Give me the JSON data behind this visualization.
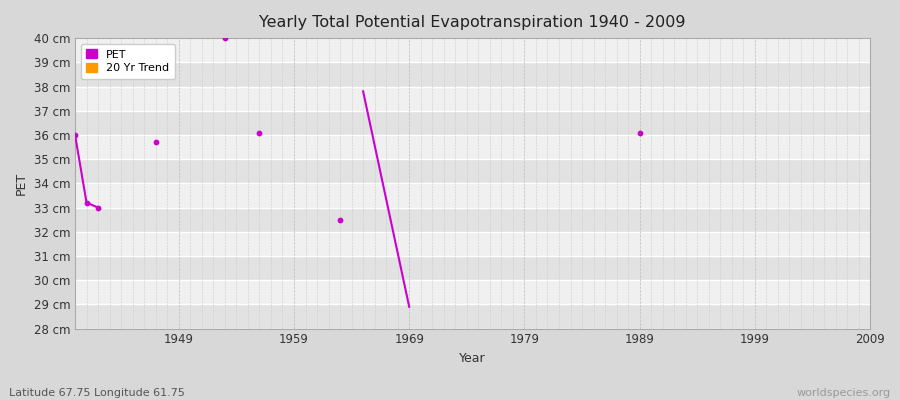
{
  "title": "Yearly Total Potential Evapotranspiration 1940 - 2009",
  "xlabel": "Year",
  "ylabel": "PET",
  "xlim": [
    1940,
    2009
  ],
  "ylim": [
    28,
    40
  ],
  "yticks": [
    28,
    29,
    30,
    31,
    32,
    33,
    34,
    35,
    36,
    37,
    38,
    39,
    40
  ],
  "ytick_labels": [
    "28 cm",
    "29 cm",
    "30 cm",
    "31 cm",
    "32 cm",
    "33 cm",
    "34 cm",
    "35 cm",
    "36 cm",
    "37 cm",
    "38 cm",
    "39 cm",
    "40 cm"
  ],
  "xticks": [
    1949,
    1959,
    1969,
    1979,
    1989,
    1999,
    2009
  ],
  "pet_color": "#cc00cc",
  "trend_color": "#ff9900",
  "fig_bg_color": "#d8d8d8",
  "plot_bg_light": "#f0f0f0",
  "plot_bg_dark": "#e2e2e2",
  "subtitle": "Latitude 67.75 Longitude 61.75",
  "watermark": "worldspecies.org",
  "pet_points": [
    {
      "year": 1940,
      "value": 36.0
    },
    {
      "year": 1941,
      "value": 33.2
    },
    {
      "year": 1942,
      "value": 33.0
    },
    {
      "year": 1947,
      "value": 35.7
    },
    {
      "year": 1953,
      "value": 40.0
    },
    {
      "year": 1956,
      "value": 36.1
    },
    {
      "year": 1963,
      "value": 32.5
    },
    {
      "year": 1989,
      "value": 36.1
    }
  ],
  "line_segments": [
    {
      "x": [
        1940,
        1941,
        1942
      ],
      "y": [
        36.0,
        33.2,
        33.0
      ]
    },
    {
      "x": [
        1965,
        1969
      ],
      "y": [
        37.8,
        28.9
      ]
    }
  ]
}
